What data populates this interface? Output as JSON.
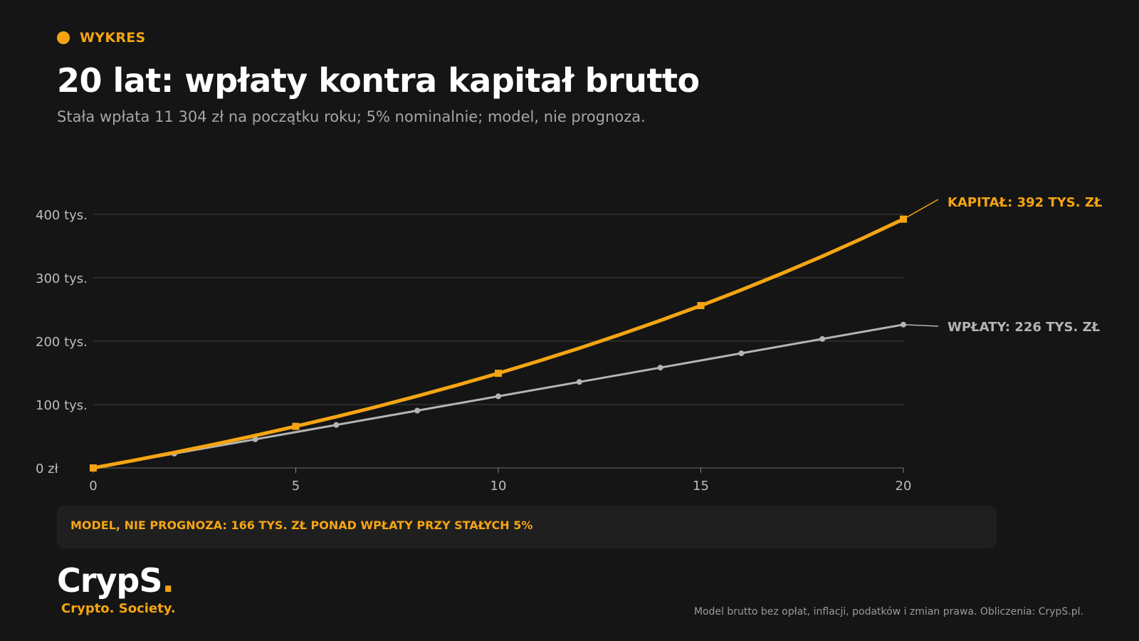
{
  "header": {
    "tag": "WYKRES",
    "title": "20 lat: wpłaty kontra kapitał brutto",
    "subtitle": "Stała wpłata 11 304 zł na początku roku; 5% nominalnie; model, nie prognoza."
  },
  "note": "MODEL, NIE PROGNOZA: 166 TYS. ZŁ PONAD WPŁATY PRZY STAŁYCH 5%",
  "logo": {
    "name": "CrypS",
    "dot": ".",
    "tagline": "Crypto. Society."
  },
  "footer": "Model brutto bez opłat, inflacji, podatków i zmian prawa. Obliczenia: CrypS.pl.",
  "colors": {
    "background": "#151515",
    "accent": "#f5a513",
    "wplaty": "#b4b4b4",
    "grid": "#3e3e3e",
    "note_bg": "#1f1f1f"
  },
  "chart_data": {
    "type": "line",
    "xlim": [
      0,
      20
    ],
    "ylim": [
      0,
      400000
    ],
    "x_ticks": [
      0,
      5,
      10,
      15,
      20
    ],
    "x_tick_labels": [
      "0",
      "5",
      "10",
      "15",
      "20"
    ],
    "y_ticks": [
      0,
      100000,
      200000,
      300000,
      400000
    ],
    "y_tick_labels": [
      "0 zł",
      "100 tys.",
      "200 tys.",
      "300 tys.",
      "400 tys."
    ],
    "grid": true,
    "series": [
      {
        "name": "WPŁATY",
        "label": "WPŁATY: 226 TYS. ZŁ",
        "color": "#b4b4b4",
        "marker": "circle",
        "x": [
          0,
          2,
          4,
          6,
          8,
          10,
          12,
          14,
          16,
          18,
          20
        ],
        "y": [
          0,
          22608,
          45216,
          67824,
          90432,
          113040,
          135648,
          158256,
          180864,
          203472,
          226080
        ]
      },
      {
        "name": "KAPITAŁ",
        "label": "KAPITAŁ: 392 TYS. ZŁ",
        "color": "#f5a513",
        "marker": "square",
        "x": [
          0,
          1,
          2,
          3,
          4,
          5,
          6,
          7,
          8,
          9,
          10,
          11,
          12,
          13,
          14,
          15,
          16,
          17,
          18,
          19,
          20
        ],
        "y": [
          0,
          11869,
          24332,
          37418,
          51158,
          65586,
          80734,
          96640,
          113341,
          130877,
          149290,
          168624,
          188925,
          210240,
          232622,
          256122,
          280797,
          306706,
          333910,
          362475,
          392468
        ],
        "marker_x": [
          0,
          5,
          10,
          15,
          20
        ]
      }
    ]
  }
}
